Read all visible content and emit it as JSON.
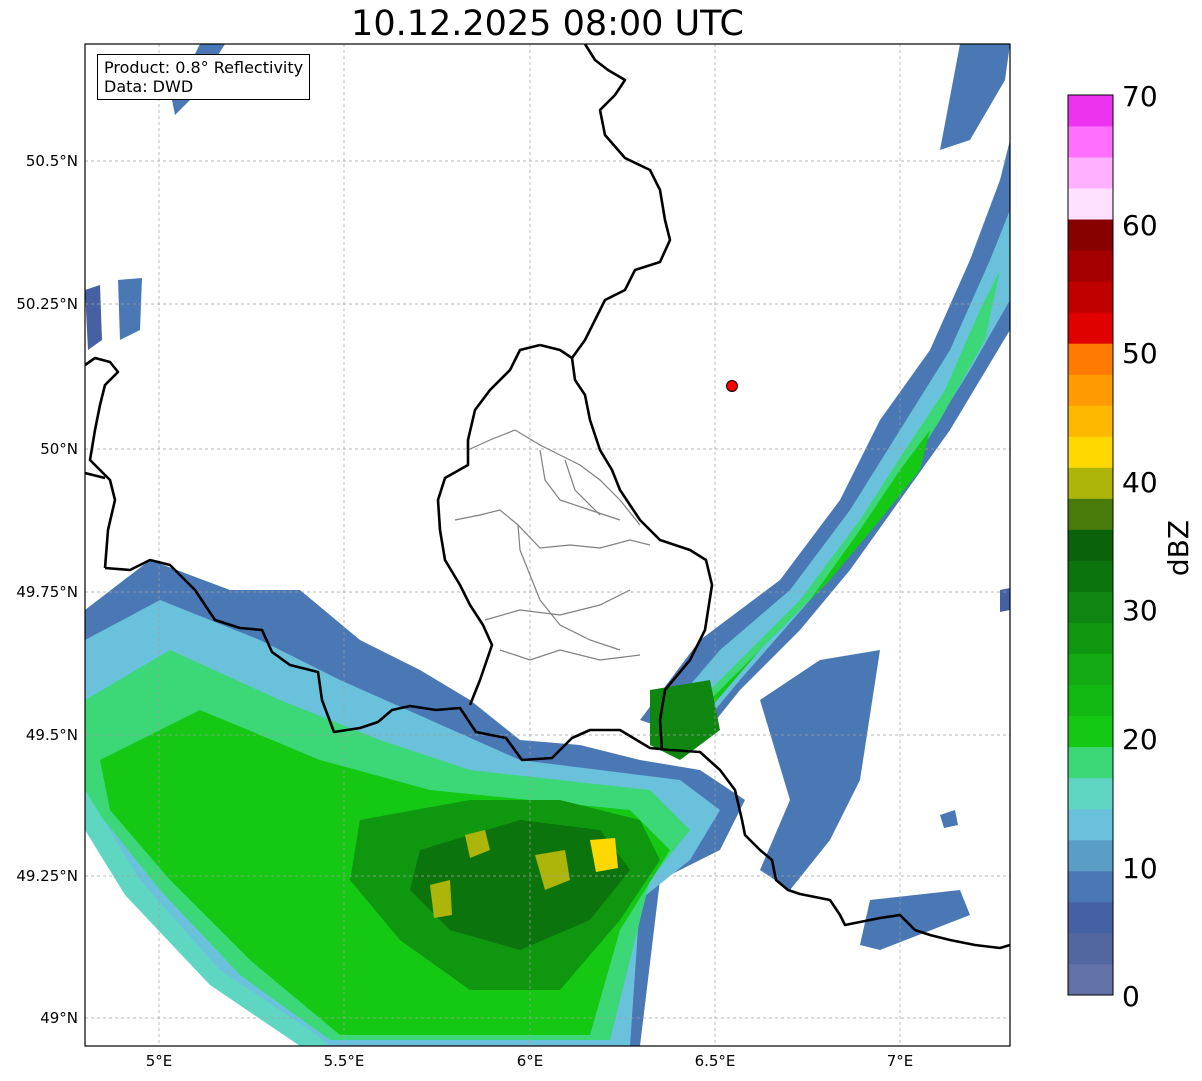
{
  "title": "10.12.2025 08:00 UTC",
  "info": {
    "product": "Product: 0.8° Reflectivity",
    "data_source": "Data: DWD"
  },
  "axes": {
    "lon_ticks": [
      "5°E",
      "5.5°E",
      "6°E",
      "6.5°E",
      "7°E"
    ],
    "lat_ticks": [
      "50.5°N",
      "50.25°N",
      "50°N",
      "49.75°N",
      "49.5°N",
      "49.25°N",
      "49°N"
    ],
    "extent": {
      "lon": [
        4.8,
        7.3
      ],
      "lat": [
        48.95,
        50.72
      ]
    },
    "gridlines": true
  },
  "colorbar": {
    "label": "dBZ",
    "ticks": [
      "0",
      "10",
      "20",
      "30",
      "40",
      "50",
      "60",
      "70"
    ],
    "range": [
      0,
      70
    ],
    "colors": [
      "#6272a8",
      "#52669f",
      "#4660a4",
      "#4a78b4",
      "#5a9ec8",
      "#6ac1dc",
      "#5fd6c2",
      "#3cd878",
      "#14c814",
      "#12b812",
      "#14aa14",
      "#0f980f",
      "#0f860f",
      "#0c740c",
      "#0a620a",
      "#497b0a",
      "#adb40a",
      "#ffd800",
      "#ffb800",
      "#ff9a00",
      "#ff7a00",
      "#e00000",
      "#c00000",
      "#a40000",
      "#880000",
      "#ffe0ff",
      "#ffb0ff",
      "#ff70ff",
      "#ee33ee"
    ]
  },
  "radar_site_color": "#ff0000"
}
